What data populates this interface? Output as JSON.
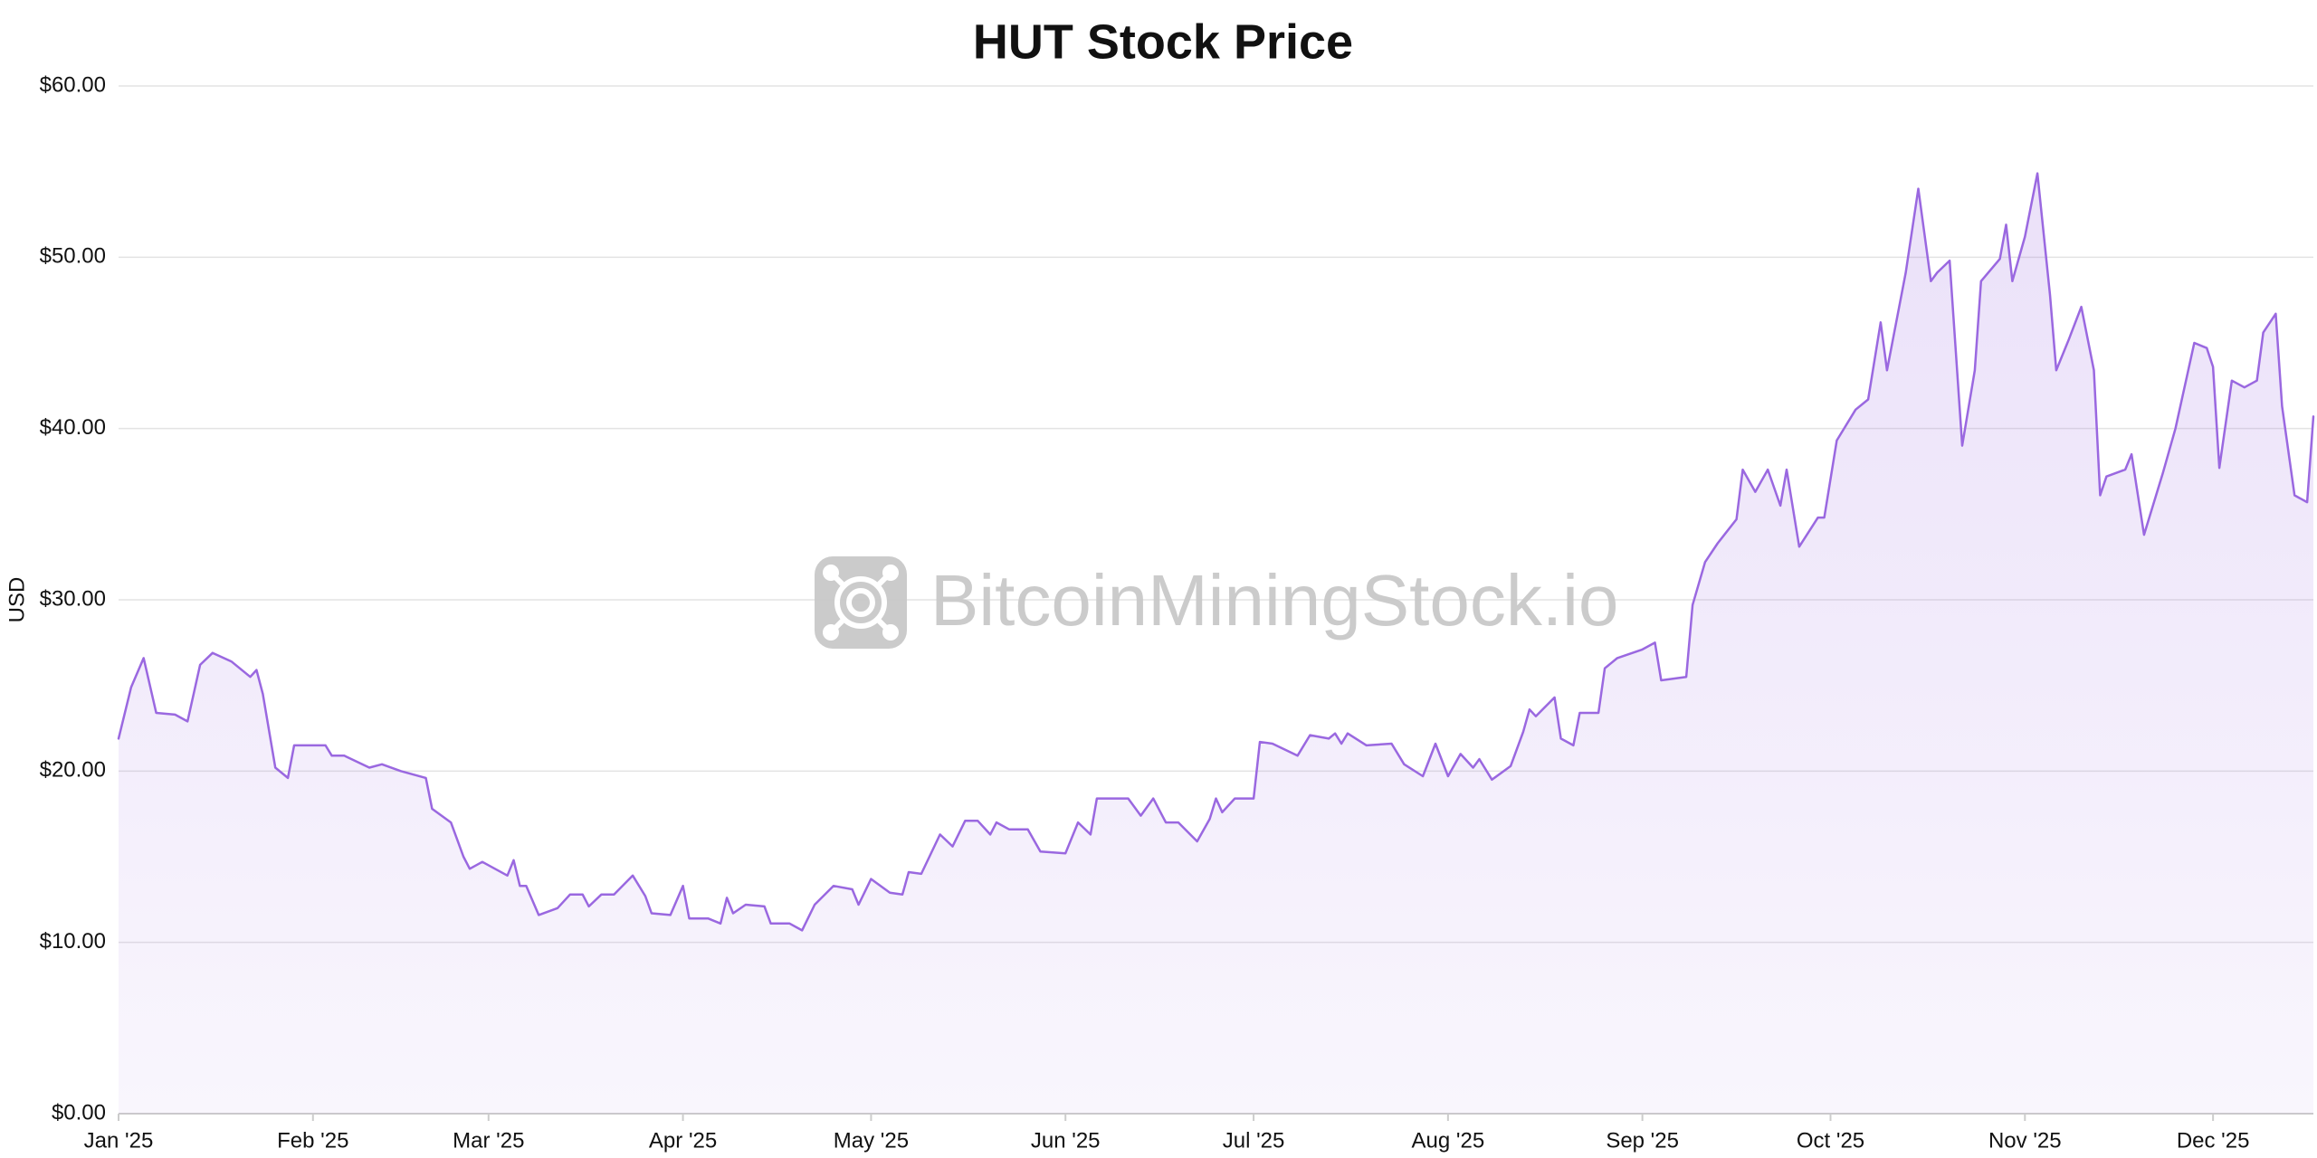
{
  "chart_data": {
    "type": "area",
    "title": "HUT Stock Price",
    "ylabel": "USD",
    "watermark": "BitcoinMiningStock.io",
    "color": "#9a68e0",
    "grid": true,
    "xlim": [
      0,
      350
    ],
    "xticks": [
      {
        "value": 0,
        "label": "Jan '25"
      },
      {
        "value": 31,
        "label": "Feb '25"
      },
      {
        "value": 59,
        "label": "Mar '25"
      },
      {
        "value": 90,
        "label": "Apr '25"
      },
      {
        "value": 120,
        "label": "May '25"
      },
      {
        "value": 151,
        "label": "Jun '25"
      },
      {
        "value": 181,
        "label": "Jul '25"
      },
      {
        "value": 212,
        "label": "Aug '25"
      },
      {
        "value": 243,
        "label": "Sep '25"
      },
      {
        "value": 273,
        "label": "Oct '25"
      },
      {
        "value": 304,
        "label": "Nov '25"
      },
      {
        "value": 334,
        "label": "Dec '25"
      }
    ],
    "ylim": [
      0,
      60
    ],
    "yticks": [
      {
        "value": 0,
        "label": "$0.00"
      },
      {
        "value": 10,
        "label": "$10.00"
      },
      {
        "value": 20,
        "label": "$20.00"
      },
      {
        "value": 30,
        "label": "$30.00"
      },
      {
        "value": 40,
        "label": "$40.00"
      },
      {
        "value": 50,
        "label": "$50.00"
      },
      {
        "value": 60,
        "label": "$60.00"
      }
    ],
    "x": [
      0,
      2,
      4,
      6,
      9,
      11,
      13,
      15,
      18,
      21,
      22,
      23,
      25,
      27,
      28,
      33,
      34,
      36,
      40,
      42,
      45,
      49,
      50,
      53,
      55,
      56,
      58,
      62,
      63,
      64,
      65,
      67,
      70,
      72,
      74,
      75,
      77,
      79,
      82,
      84,
      85,
      88,
      90,
      91,
      94,
      96,
      97,
      98,
      100,
      103,
      104,
      107,
      109,
      111,
      114,
      117,
      118,
      120,
      123,
      125,
      126,
      128,
      131,
      133,
      135,
      137,
      139,
      140,
      142,
      145,
      147,
      151,
      153,
      155,
      156,
      161,
      163,
      165,
      167,
      169,
      172,
      174,
      175,
      176,
      178,
      181,
      182,
      184,
      188,
      190,
      193,
      194,
      195,
      196,
      199,
      203,
      205,
      208,
      210,
      212,
      214,
      216,
      217,
      219,
      222,
      224,
      225,
      226,
      229,
      230,
      232,
      233,
      236,
      237,
      239,
      243,
      245,
      246,
      250,
      251,
      253,
      255,
      258,
      259,
      261,
      263,
      265,
      266,
      268,
      271,
      272,
      274,
      277,
      279,
      281,
      282,
      285,
      287,
      289,
      290,
      292,
      294,
      296,
      297,
      300,
      301,
      302,
      304,
      306,
      308,
      309,
      311,
      313,
      315,
      316,
      317,
      320,
      321,
      323,
      326,
      328,
      331,
      333,
      334,
      335,
      337,
      339,
      341,
      342,
      344,
      345,
      347,
      349,
      350
    ],
    "values": [
      21.9,
      24.9,
      26.6,
      23.4,
      23.3,
      22.9,
      26.2,
      26.9,
      26.4,
      25.5,
      25.9,
      24.5,
      20.2,
      19.6,
      21.5,
      21.5,
      20.9,
      20.9,
      20.2,
      20.4,
      20,
      19.6,
      17.8,
      17,
      15,
      14.3,
      14.7,
      13.9,
      14.8,
      13.3,
      13.3,
      11.6,
      12,
      12.8,
      12.8,
      12.1,
      12.8,
      12.8,
      13.9,
      12.7,
      11.7,
      11.6,
      13.3,
      11.4,
      11.4,
      11.1,
      12.6,
      11.7,
      12.2,
      12.1,
      11.1,
      11.1,
      10.7,
      12.2,
      13.3,
      13.1,
      12.2,
      13.7,
      12.9,
      12.8,
      14.1,
      14,
      16.3,
      15.6,
      17.1,
      17.1,
      16.3,
      17,
      16.6,
      16.6,
      15.3,
      15.2,
      17,
      16.3,
      18.4,
      18.4,
      17.4,
      18.4,
      17,
      17,
      15.9,
      17.2,
      18.4,
      17.6,
      18.4,
      18.4,
      21.7,
      21.6,
      20.9,
      22.1,
      21.9,
      22.2,
      21.6,
      22.2,
      21.5,
      21.6,
      20.4,
      19.7,
      21.6,
      19.7,
      21,
      20.2,
      20.7,
      19.5,
      20.3,
      22.3,
      23.6,
      23.2,
      24.3,
      21.9,
      21.5,
      23.4,
      23.4,
      26,
      26.6,
      27.1,
      27.5,
      25.3,
      25.5,
      29.7,
      32.2,
      33.3,
      34.7,
      37.6,
      36.3,
      37.6,
      35.5,
      37.6,
      33.1,
      34.8,
      34.8,
      39.3,
      41.1,
      41.7,
      46.2,
      43.4,
      49.1,
      54,
      48.6,
      49.1,
      49.8,
      39,
      43.4,
      48.6,
      49.9,
      51.9,
      48.6,
      51.2,
      54.9,
      47.8,
      43.4,
      45.2,
      47.1,
      43.4,
      36.1,
      37.2,
      37.6,
      38.5,
      33.8,
      37.4,
      40,
      45,
      44.7,
      43.6,
      37.7,
      42.8,
      42.4,
      42.8,
      45.6,
      46.7,
      41.3,
      36.1,
      35.7,
      40.7
    ]
  }
}
